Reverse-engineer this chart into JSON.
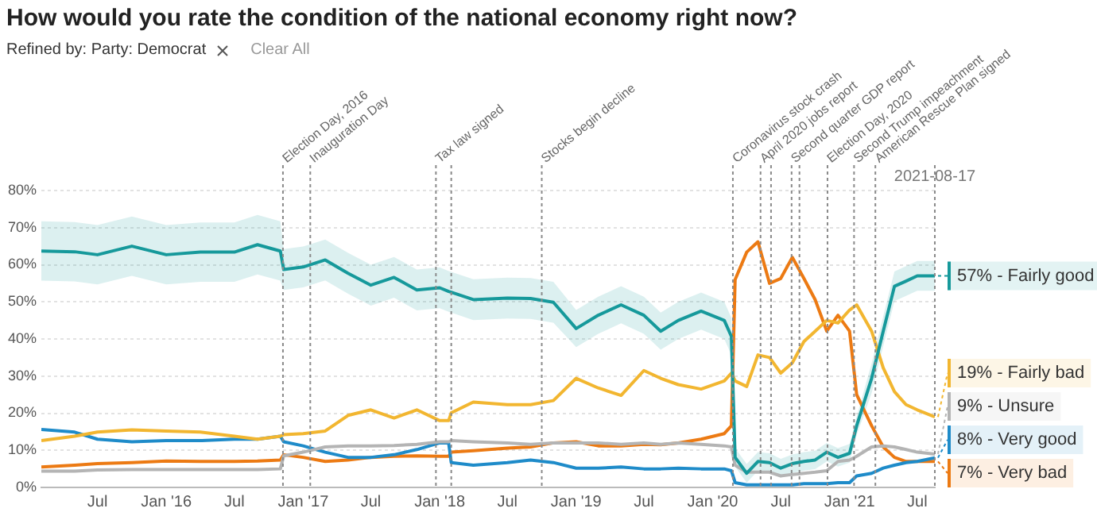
{
  "chart_data": {
    "type": "line",
    "title": "How would you rate the condition of the national economy right now?",
    "subtitle": "Refined by: Party: Democrat",
    "annotations": [
      "Clear All",
      {
        "text": "2021-08-17",
        "x": "2021-08-17",
        "y": 80
      }
    ],
    "x": [
      "2015-02-01",
      "2015-05-01",
      "2015-07-01",
      "2015-10-01",
      "2016-01-01",
      "2016-04-01",
      "2016-07-01",
      "2016-09-01",
      "2016-11-01",
      "2016-11-10",
      "2017-01-01",
      "2017-03-01",
      "2017-05-01",
      "2017-07-01",
      "2017-09-01",
      "2017-11-01",
      "2018-01-01",
      "2018-01-25",
      "2018-02-01",
      "2018-04-01",
      "2018-07-01",
      "2018-09-01",
      "2018-11-01",
      "2019-01-01",
      "2019-03-01",
      "2019-05-01",
      "2019-07-01",
      "2019-08-15",
      "2019-10-01",
      "2019-12-01",
      "2020-02-01",
      "2020-02-20",
      "2020-03-01",
      "2020-04-01",
      "2020-05-01",
      "2020-06-01",
      "2020-07-01",
      "2020-08-01",
      "2020-09-01",
      "2020-10-01",
      "2020-11-01",
      "2020-12-01",
      "2021-01-01",
      "2021-01-20",
      "2021-03-01",
      "2021-04-01",
      "2021-05-01",
      "2021-06-01",
      "2021-07-01",
      "2021-08-17"
    ],
    "series": [
      {
        "name": "57% - Fairly good",
        "color": "#16999b",
        "values": [
          63.7,
          63.5,
          62.7,
          65,
          62.7,
          63.4,
          63.4,
          65.4,
          63.7,
          58.7,
          59.4,
          61.3,
          57.7,
          54.5,
          56.6,
          53.2,
          53.8,
          52.8,
          52.6,
          50.6,
          51,
          50.9,
          49.9,
          42.8,
          46.4,
          49.2,
          46.4,
          42.1,
          45,
          47.5,
          45,
          40.7,
          8.1,
          3.8,
          7,
          6.7,
          5.2,
          6.4,
          7,
          7.4,
          9.5,
          8.1,
          9.2,
          16.6,
          29.4,
          42.1,
          54.2,
          55.6,
          57,
          57
        ],
        "lower": [
          55.7,
          55.5,
          54.7,
          57,
          54.7,
          55.4,
          55.4,
          57.4,
          55.7,
          53.2,
          53.9,
          55.8,
          52.2,
          49,
          51.1,
          47.7,
          48.3,
          47.3,
          47.1,
          45.1,
          45.5,
          45.4,
          44.4,
          37.8,
          41.4,
          44.2,
          41.4,
          37.1,
          40,
          42.5,
          40,
          35.7,
          5.6,
          1.3,
          4.5,
          4.2,
          2.7,
          3.9,
          4.5,
          4.9,
          7,
          5.6,
          6.7,
          14.1,
          25.4,
          38.1,
          50.2,
          51.6,
          53,
          53
        ],
        "upper": [
          71.7,
          71.5,
          70.7,
          73,
          70.7,
          71.4,
          71.4,
          73.4,
          71.7,
          64.2,
          64.9,
          66.8,
          63.2,
          60,
          62.1,
          58.7,
          59.3,
          58.3,
          58.1,
          56.1,
          56.5,
          56.4,
          55.4,
          47.8,
          51.4,
          54.2,
          51.4,
          47.1,
          50,
          52.5,
          50,
          45.7,
          10.6,
          6.3,
          9.5,
          9.2,
          7.7,
          8.9,
          9.5,
          9.9,
          12,
          10.6,
          11.7,
          19.1,
          33.4,
          46.1,
          58.2,
          59.6,
          61,
          61
        ]
      },
      {
        "name": "19% - Fairly bad",
        "color": "#f2b630",
        "values": [
          12.6,
          13.8,
          14.9,
          15.5,
          15.2,
          14.9,
          13.8,
          13,
          13.8,
          14.2,
          14.5,
          15.2,
          19.4,
          20.9,
          18.7,
          20.9,
          18,
          18,
          20.1,
          23,
          22.3,
          22.3,
          23.4,
          29.4,
          26.8,
          24.8,
          31.5,
          29.4,
          27.7,
          26.5,
          28.7,
          30.8,
          28.7,
          27.2,
          35.7,
          35,
          30.8,
          33.6,
          39.3,
          42.1,
          45,
          44.3,
          47.8,
          49.2,
          42.1,
          32.2,
          25.8,
          22.3,
          20.9,
          19
        ]
      },
      {
        "name": "9% - Unsure",
        "color": "#b4b4b4",
        "values": [
          4.4,
          4.4,
          4.7,
          4.8,
          4.8,
          4.8,
          4.8,
          4.8,
          5,
          8.5,
          9.5,
          10.9,
          11.2,
          11.2,
          11.3,
          11.6,
          12.3,
          12.3,
          12.6,
          12.3,
          12,
          11.6,
          12,
          12,
          12,
          11.6,
          12,
          11.6,
          12,
          11.6,
          11.2,
          10.9,
          6,
          4.1,
          4.1,
          4.1,
          3.1,
          3.5,
          3.8,
          4.1,
          4.5,
          7,
          7.4,
          8.4,
          10.9,
          11.2,
          10.9,
          10.2,
          9.5,
          9
        ]
      },
      {
        "name": "8% - Very good",
        "color": "#1e8bc9",
        "values": [
          15.6,
          14.9,
          13,
          12.3,
          12.6,
          12.6,
          13,
          13,
          13.8,
          12.3,
          11.2,
          9.5,
          8.1,
          8.1,
          8.8,
          10.2,
          12,
          12,
          6.7,
          6,
          6.7,
          7.4,
          6.7,
          5.2,
          5.2,
          5.5,
          5,
          5,
          5.2,
          5,
          5,
          4.5,
          1.3,
          0.7,
          0.7,
          0.7,
          0.7,
          0.7,
          1,
          1,
          1,
          1.3,
          1.3,
          3.1,
          3.8,
          5.2,
          6,
          6.7,
          7,
          8
        ]
      },
      {
        "name": "7% - Very bad",
        "color": "#ec7a13",
        "values": [
          5.5,
          6,
          6.4,
          6.7,
          7.1,
          7,
          7,
          7.1,
          7.4,
          8.8,
          8.1,
          7,
          7.4,
          8.1,
          8.4,
          8.5,
          8.4,
          8.4,
          9.5,
          9.9,
          10.6,
          10.9,
          12,
          12.3,
          11.2,
          11.2,
          11.6,
          11.5,
          12,
          13,
          14.5,
          16.6,
          56,
          63.4,
          66.2,
          55,
          56.3,
          62,
          56.3,
          50.6,
          42.1,
          46.4,
          42.1,
          25,
          16.6,
          10.9,
          8.1,
          7,
          7,
          7
        ]
      }
    ],
    "xlim": [
      "2015-02-01",
      "2021-08-17"
    ],
    "xticks": [
      {
        "value": "2015-07-01",
        "label": "Jul"
      },
      {
        "value": "2016-01-01",
        "label": "Jan '16"
      },
      {
        "value": "2016-07-01",
        "label": "Jul"
      },
      {
        "value": "2017-01-01",
        "label": "Jan '17"
      },
      {
        "value": "2017-07-01",
        "label": "Jul"
      },
      {
        "value": "2018-01-01",
        "label": "Jan '18"
      },
      {
        "value": "2018-07-01",
        "label": "Jul"
      },
      {
        "value": "2019-01-01",
        "label": "Jan '19"
      },
      {
        "value": "2019-07-01",
        "label": "Jul"
      },
      {
        "value": "2020-01-01",
        "label": "Jan '20"
      },
      {
        "value": "2020-07-01",
        "label": "Jul"
      },
      {
        "value": "2021-01-01",
        "label": "Jan '21"
      },
      {
        "value": "2021-07-01",
        "label": "Jul"
      }
    ],
    "ylim": [
      0,
      80
    ],
    "yticks": [
      {
        "value": 0,
        "label": "0%"
      },
      {
        "value": 10,
        "label": "10%"
      },
      {
        "value": 20,
        "label": "20%"
      },
      {
        "value": 30,
        "label": "30%"
      },
      {
        "value": 40,
        "label": "40%"
      },
      {
        "value": 50,
        "label": "50%"
      },
      {
        "value": 60,
        "label": "60%"
      },
      {
        "value": 70,
        "label": "70%"
      },
      {
        "value": 80,
        "label": "80%"
      }
    ],
    "ref_lines": [
      {
        "axis": "x",
        "value": "2016-11-08",
        "label": "Election Day, 2016",
        "line_style": "dotted"
      },
      {
        "axis": "x",
        "value": "2017-01-20",
        "label": "Inauguration Day",
        "line_style": "dotted"
      },
      {
        "axis": "x",
        "value": "2017-12-22",
        "label": "Tax law signed",
        "line_style": "dotted"
      },
      {
        "axis": "x",
        "value": "2018-02-01",
        "line_style": "dotted"
      },
      {
        "axis": "x",
        "value": "2018-10-01",
        "label": "Stocks begin decline",
        "line_style": "dotted"
      },
      {
        "axis": "x",
        "value": "2020-02-24",
        "label": "Coronavirus stock crash",
        "line_style": "dotted"
      },
      {
        "axis": "x",
        "value": "2020-05-08",
        "label": "April 2020 jobs report",
        "line_style": "dotted"
      },
      {
        "axis": "x",
        "value": "2020-06-05",
        "line_style": "dotted"
      },
      {
        "axis": "x",
        "value": "2020-07-30",
        "label": "Second quarter GDP report",
        "line_style": "dotted"
      },
      {
        "axis": "x",
        "value": "2020-08-20",
        "line_style": "dotted"
      },
      {
        "axis": "x",
        "value": "2020-11-03",
        "label": "Election Day, 2020",
        "line_style": "dotted"
      },
      {
        "axis": "x",
        "value": "2021-01-13",
        "label": "Second Trump impeachment",
        "line_style": "dotted"
      },
      {
        "axis": "x",
        "value": "2021-03-11",
        "label": "American Rescue Plan signed",
        "line_style": "dotted"
      },
      {
        "axis": "x",
        "value": "2021-08-17",
        "line_style": "dotted"
      }
    ],
    "grid": "y",
    "legend": "right",
    "marker": "none",
    "line_style": "solid"
  }
}
